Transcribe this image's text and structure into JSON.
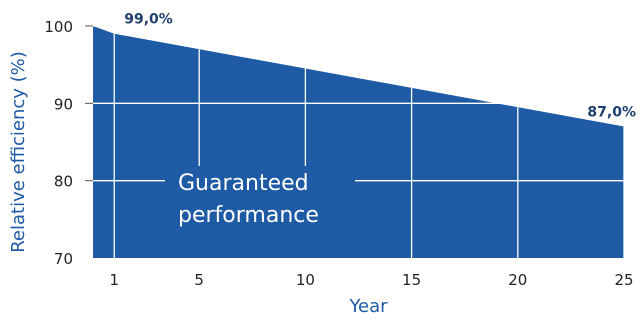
{
  "chart_data": {
    "type": "area",
    "title": "",
    "xlabel": "Year",
    "ylabel": "Relative efficiency (%)",
    "x": [
      0,
      1,
      25
    ],
    "series": [
      {
        "values": [
          100,
          99.0,
          87.0
        ]
      }
    ],
    "xlim": [
      0,
      25
    ],
    "ylim": [
      70,
      100
    ],
    "xticks": [
      1,
      5,
      10,
      15,
      20,
      25
    ],
    "yticks": [
      70,
      80,
      90,
      100
    ],
    "data_labels": [
      {
        "x": 1,
        "y": 99.0,
        "text": "99,0%"
      },
      {
        "x": 25,
        "y": 87.0,
        "text": "87,0%"
      }
    ],
    "annotation": {
      "lines": [
        "Guaranteed",
        "performance"
      ]
    },
    "grid": "vertical lines at x ticks, horizontal lines at y ticks drawn over the area",
    "legend": "none"
  },
  "colors": {
    "area": "#1e5ba4",
    "accent_text": "#1e5ba4",
    "data_label": "#1f3f6e",
    "grid": "#ffffff",
    "tick_text": "#222222"
  }
}
